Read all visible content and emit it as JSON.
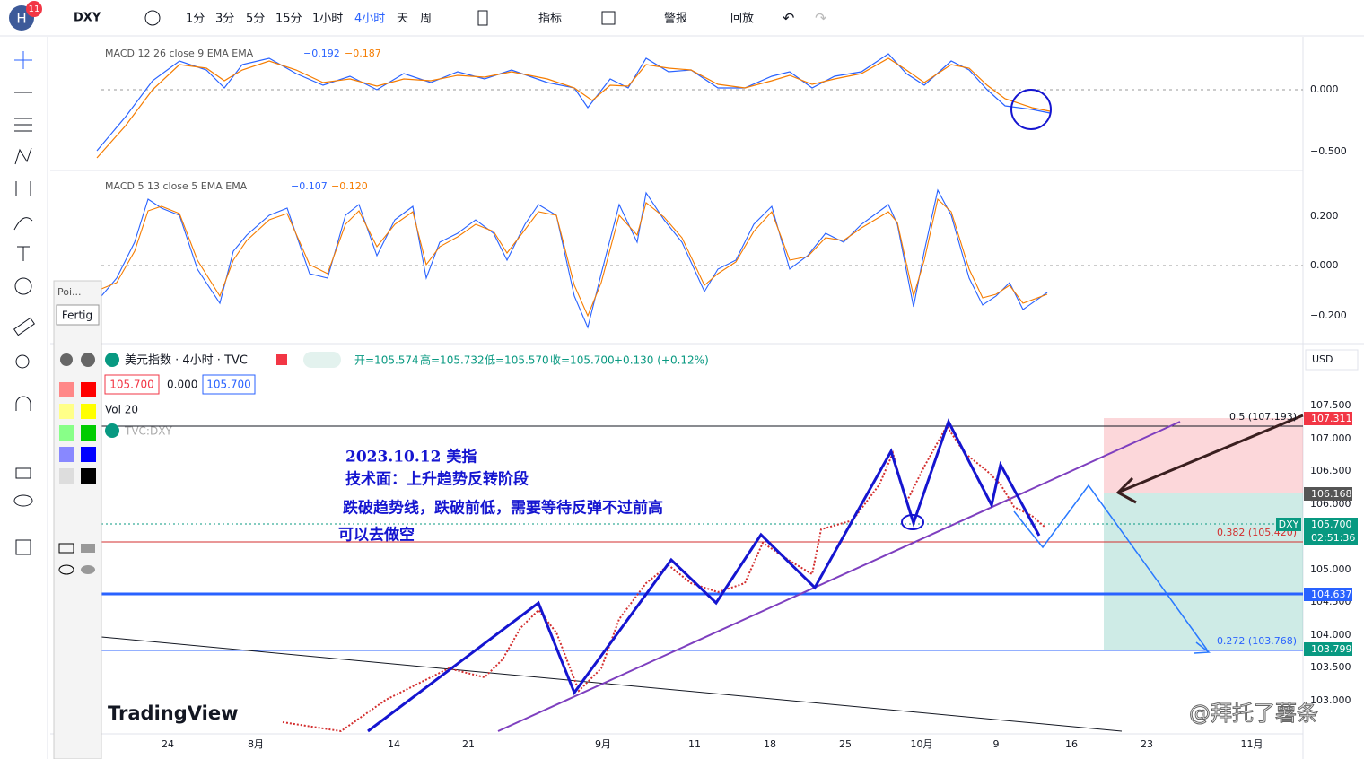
{
  "toolbar": {
    "avatar": "H",
    "badge": "11",
    "symbol": "DXY",
    "intervals": [
      "1分",
      "3分",
      "5分",
      "15分",
      "1小时",
      "4小时",
      "天",
      "周"
    ],
    "indicators": "指标",
    "alerts": "警报",
    "replay": "回放"
  },
  "macd1": {
    "label": "MACD 12 26 close 9 EMA EMA",
    "macd": "−0.192",
    "signal": "−0.187",
    "axis": [
      "0.000",
      "−0.500"
    ]
  },
  "macd2": {
    "label": "MACD 5 13 close 5 EMA EMA",
    "macd": "−0.107",
    "signal": "−0.120",
    "axis": [
      "0.200",
      "0.000",
      "−0.200"
    ]
  },
  "main": {
    "title": "美元指数 · 4小时 · TVC",
    "ohlc": [
      "开=105.574",
      "高=105.732",
      "低=105.570",
      "收=105.700",
      "+0.130 (+0.12%)"
    ],
    "bid": "105.700",
    "spread": "0.000",
    "ask": "105.700",
    "volume": "Vol 20",
    "symbol": "TVC:DXY",
    "currency": "USD",
    "price_axis": [
      "107.500",
      "107.000",
      "106.500",
      "106.000",
      "105.000",
      "104.500",
      "104.000",
      "103.500",
      "103.000"
    ],
    "badges": {
      "top": "107.311",
      "mid": "106.168",
      "sym": "DXY",
      "last": "105.700",
      "timer": "02:51:36",
      "blue": "104.637",
      "low": "103.799"
    },
    "fib": [
      "0.5 (107.193)",
      "0.382 (105.420)",
      "0.272 (103.768)"
    ],
    "note": [
      "2023.10.12  美指",
      "技术面：上升趋势反转阶段",
      "跌破趋势线，跌破前低，需要等待反弹不过前高",
      "可以去做空"
    ]
  },
  "x_axis": [
    "24",
    "8月",
    "14",
    "21",
    "9月",
    "11",
    "18",
    "25",
    "10月",
    "9",
    "16",
    "23",
    "11月"
  ],
  "panel": {
    "title": "Poi...",
    "button": "Fertig"
  },
  "watermark": [
    "TradingView",
    "@拜托了薯条"
  ]
}
